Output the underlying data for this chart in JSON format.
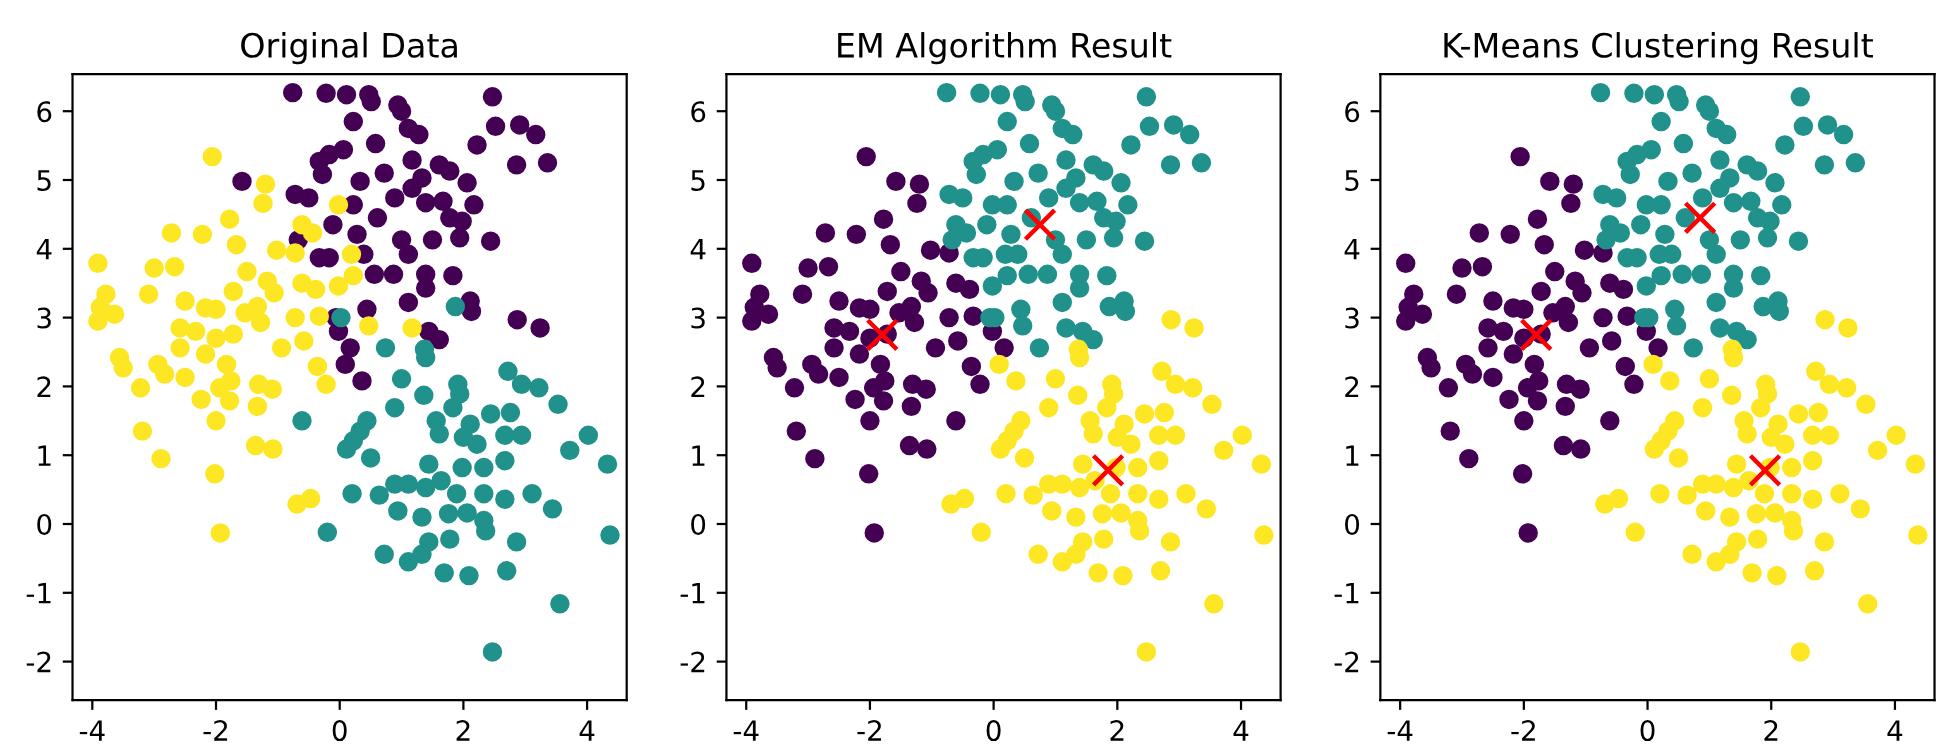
{
  "chart_data": [
    {
      "type": "scatter",
      "title": "Original Data",
      "marker": "circle",
      "xlim": [
        -4.32,
        4.64
      ],
      "ylim": [
        -2.56,
        6.54
      ],
      "xticks": [
        -4,
        -2,
        0,
        2,
        4
      ],
      "yticks": [
        -2,
        -1,
        0,
        1,
        2,
        3,
        4,
        5,
        6
      ],
      "series": [
        {
          "color": "#440154",
          "x": [
            -0.76,
            -0.22,
            0.11,
            0.47,
            0.51,
            0.94,
            1.0,
            2.47,
            0.22,
            1.11,
            1.28,
            2.52,
            2.91,
            3.17,
            2.22,
            0.58,
            0.06,
            -0.17,
            -0.33,
            1.17,
            1.61,
            1.78,
            2.86,
            3.36,
            -1.58,
            -0.28,
            0.33,
            0.72,
            1.33,
            2.06,
            -0.72,
            -0.5,
            0.89,
            1.17,
            1.39,
            1.67,
            2.17,
            0.22,
            1.78,
            1.98,
            -0.11,
            0.61,
            -0.67,
            0.28,
            1.0,
            1.5,
            1.94,
            2.44,
            0.39,
            -0.33,
            -0.17,
            1.11,
            0.56,
            0.87,
            1.39,
            1.83,
            1.39,
            1.11,
            2.11,
            2.13,
            0.44,
            -0.06,
            -0.02,
            0.17,
            0.09,
            0.36,
            1.44,
            1.61,
            2.87,
            3.24
          ],
          "values": [
            6.27,
            6.26,
            6.24,
            6.24,
            6.14,
            6.09,
            6.0,
            6.21,
            5.85,
            5.75,
            5.66,
            5.78,
            5.8,
            5.66,
            5.51,
            5.53,
            5.44,
            5.37,
            5.27,
            5.29,
            5.22,
            5.13,
            5.22,
            5.25,
            4.98,
            5.08,
            4.98,
            5.1,
            5.03,
            4.96,
            4.79,
            4.74,
            4.74,
            4.88,
            4.67,
            4.69,
            4.64,
            4.64,
            4.45,
            4.4,
            4.35,
            4.45,
            4.13,
            4.21,
            4.13,
            4.13,
            4.16,
            4.11,
            3.92,
            3.87,
            3.87,
            3.92,
            3.63,
            3.63,
            3.63,
            3.61,
            3.43,
            3.22,
            3.24,
            3.09,
            3.12,
            3.0,
            2.8,
            2.56,
            2.32,
            2.08,
            2.8,
            2.68,
            2.97,
            2.85
          ]
        },
        {
          "color": "#21918c",
          "x": [
            1.87,
            0.02,
            0.74,
            1.37,
            1.39,
            1.0,
            1.36,
            1.91,
            1.94,
            2.72,
            2.94,
            3.22,
            3.53,
            0.89,
            1.83,
            -0.61,
            0.44,
            0.33,
            0.22,
            0.11,
            0.5,
            1.56,
            1.61,
            2.11,
            2.44,
            2.76,
            2.0,
            2.22,
            2.67,
            2.94,
            4.02,
            3.72,
            4.33,
            1.44,
            1.98,
            2.33,
            2.67,
            0.89,
            1.11,
            1.39,
            1.64,
            1.89,
            2.33,
            2.67,
            3.11,
            0.2,
            0.64,
            0.94,
            1.33,
            1.76,
            2.06,
            2.33,
            3.44,
            2.36,
            -0.2,
            1.78,
            1.44,
            1.33,
            2.86,
            4.37,
            0.72,
            1.11,
            1.69,
            2.09,
            2.7,
            3.56,
            2.47
          ],
          "values": [
            3.16,
            3.0,
            2.56,
            2.54,
            2.42,
            2.11,
            1.87,
            2.03,
            1.89,
            2.22,
            2.03,
            1.98,
            1.74,
            1.69,
            1.69,
            1.5,
            1.5,
            1.35,
            1.21,
            1.09,
            0.96,
            1.5,
            1.31,
            1.45,
            1.6,
            1.62,
            1.26,
            1.16,
            1.29,
            1.29,
            1.29,
            1.07,
            0.87,
            0.87,
            0.82,
            0.82,
            0.92,
            0.58,
            0.58,
            0.53,
            0.63,
            0.44,
            0.44,
            0.36,
            0.44,
            0.44,
            0.42,
            0.19,
            0.1,
            0.15,
            0.16,
            0.05,
            0.22,
            -0.1,
            -0.12,
            -0.22,
            -0.26,
            -0.44,
            -0.26,
            -0.16,
            -0.44,
            -0.55,
            -0.71,
            -0.75,
            -0.68,
            -1.16,
            -1.86
          ]
        },
        {
          "color": "#fde725",
          "x": [
            -2.06,
            -1.2,
            -1.24,
            -1.78,
            -2.72,
            -2.22,
            -1.67,
            -0.61,
            -0.44,
            -0.02,
            -1.02,
            -0.72,
            0.19,
            -3.91,
            -3.0,
            -2.67,
            -1.5,
            -1.17,
            -0.61,
            0.22,
            -0.02,
            -3.78,
            -3.09,
            -1.72,
            -1.06,
            -0.39,
            -3.87,
            -3.64,
            -2.5,
            -2.17,
            -2.0,
            -1.53,
            -1.33,
            -0.33,
            -3.91,
            -2.58,
            -2.33,
            -1.28,
            -0.72,
            0.47,
            1.17,
            -2.0,
            -1.72,
            -0.58,
            -2.58,
            -2.17,
            -0.94,
            -3.56,
            -3.5,
            -2.94,
            -2.83,
            -1.83,
            -0.36,
            -3.22,
            -2.5,
            -1.76,
            -1.31,
            -1.09,
            -0.22,
            -1.94,
            -2.24,
            -1.78,
            -1.33,
            -2.0,
            -3.19,
            -1.36,
            -1.08,
            -2.89,
            -2.02,
            -0.69,
            -0.47,
            -1.93
          ],
          "values": [
            5.34,
            4.94,
            4.66,
            4.43,
            4.23,
            4.21,
            4.06,
            4.35,
            4.23,
            4.64,
            3.98,
            3.94,
            3.92,
            3.79,
            3.72,
            3.74,
            3.67,
            3.53,
            3.5,
            3.61,
            3.46,
            3.34,
            3.34,
            3.38,
            3.36,
            3.41,
            3.15,
            3.05,
            3.24,
            3.14,
            3.12,
            3.07,
            3.16,
            3.02,
            2.95,
            2.85,
            2.8,
            2.93,
            3.0,
            2.88,
            2.85,
            2.7,
            2.76,
            2.66,
            2.56,
            2.47,
            2.56,
            2.42,
            2.27,
            2.32,
            2.18,
            2.32,
            2.29,
            1.98,
            2.13,
            2.08,
            2.03,
            1.96,
            2.03,
            1.98,
            1.81,
            1.79,
            1.71,
            1.5,
            1.35,
            1.14,
            1.09,
            0.95,
            0.73,
            0.29,
            0.37,
            -0.13
          ]
        }
      ]
    },
    {
      "type": "scatter",
      "title": "EM Algorithm Result",
      "marker": "circle",
      "xlim": [
        -4.32,
        4.64
      ],
      "ylim": [
        -2.56,
        6.54
      ],
      "xticks": [
        -4,
        -2,
        0,
        2,
        4
      ],
      "yticks": [
        -2,
        -1,
        0,
        1,
        2,
        3,
        4,
        5,
        6
      ],
      "series": [
        {
          "color": "#440154",
          "x": [
            -2.06,
            -1.2,
            -1.24,
            -1.78,
            -2.72,
            -2.22,
            -1.67,
            -1.02,
            -0.72,
            -3.91,
            -3.0,
            -2.67,
            -1.5,
            -1.17,
            -0.61,
            -3.78,
            -3.09,
            -1.72,
            -1.06,
            -0.39,
            -3.87,
            -3.64,
            -2.5,
            -2.17,
            -2.0,
            -1.53,
            -1.33,
            -0.33,
            -3.91,
            -2.58,
            -2.33,
            -1.28,
            -0.72,
            -2.0,
            -1.72,
            -0.58,
            -2.58,
            -2.17,
            -0.94,
            -3.56,
            -3.5,
            -2.94,
            -2.83,
            -1.83,
            -0.36,
            -3.22,
            -2.5,
            -1.76,
            -1.31,
            -1.09,
            -0.22,
            -1.94,
            -2.24,
            -1.78,
            -1.33,
            -2.0,
            -3.19,
            -1.36,
            -1.08,
            -2.89,
            -2.02,
            -1.93,
            -1.58,
            -0.02,
            0.17,
            -0.61
          ],
          "values": [
            5.34,
            4.94,
            4.66,
            4.43,
            4.23,
            4.21,
            4.06,
            3.98,
            3.94,
            3.79,
            3.72,
            3.74,
            3.67,
            3.53,
            3.5,
            3.34,
            3.34,
            3.38,
            3.36,
            3.41,
            3.15,
            3.05,
            3.24,
            3.14,
            3.12,
            3.07,
            3.16,
            3.02,
            2.95,
            2.85,
            2.8,
            2.93,
            3.0,
            2.7,
            2.76,
            2.66,
            2.56,
            2.47,
            2.56,
            2.42,
            2.27,
            2.32,
            2.18,
            2.32,
            2.29,
            1.98,
            2.13,
            2.08,
            2.03,
            1.96,
            2.03,
            1.98,
            1.81,
            1.79,
            1.71,
            1.5,
            1.35,
            1.14,
            1.09,
            0.95,
            0.73,
            -0.13,
            4.98,
            2.8,
            2.56,
            1.5
          ]
        },
        {
          "color": "#21918c",
          "x": [
            -0.76,
            -0.22,
            0.11,
            0.47,
            0.51,
            0.94,
            1.0,
            2.47,
            0.22,
            1.11,
            1.28,
            2.52,
            2.91,
            3.17,
            2.22,
            0.58,
            0.06,
            -0.17,
            -0.33,
            1.17,
            1.61,
            1.78,
            2.86,
            3.36,
            -0.28,
            0.33,
            0.72,
            1.33,
            2.06,
            -0.72,
            -0.5,
            0.89,
            1.17,
            1.39,
            1.67,
            2.17,
            0.22,
            1.78,
            1.98,
            -0.11,
            0.61,
            -0.67,
            0.28,
            1.0,
            1.5,
            1.94,
            2.44,
            0.39,
            -0.33,
            -0.17,
            1.11,
            0.56,
            0.87,
            1.39,
            1.83,
            1.39,
            1.11,
            2.11,
            2.13,
            0.44,
            -0.06,
            1.44,
            1.61,
            1.87,
            0.02,
            0.74,
            -0.02,
            0.19,
            0.22,
            -0.02,
            -0.44,
            -0.61,
            0.47,
            1.17
          ],
          "values": [
            6.27,
            6.26,
            6.24,
            6.24,
            6.14,
            6.09,
            6.0,
            6.21,
            5.85,
            5.75,
            5.66,
            5.78,
            5.8,
            5.66,
            5.51,
            5.53,
            5.44,
            5.37,
            5.27,
            5.29,
            5.22,
            5.13,
            5.22,
            5.25,
            5.08,
            4.98,
            5.1,
            5.03,
            4.96,
            4.79,
            4.74,
            4.74,
            4.88,
            4.67,
            4.69,
            4.64,
            4.64,
            4.45,
            4.4,
            4.35,
            4.45,
            4.13,
            4.21,
            4.13,
            4.13,
            4.16,
            4.11,
            3.92,
            3.87,
            3.87,
            3.92,
            3.63,
            3.63,
            3.63,
            3.61,
            3.43,
            3.22,
            3.24,
            3.09,
            3.12,
            3.0,
            2.8,
            2.68,
            3.16,
            3.0,
            2.56,
            4.64,
            3.92,
            3.61,
            3.46,
            4.23,
            4.35,
            2.88,
            2.85
          ]
        },
        {
          "color": "#fde725",
          "x": [
            1.37,
            1.39,
            1.0,
            1.36,
            1.91,
            1.94,
            2.72,
            2.94,
            3.22,
            3.53,
            0.89,
            1.83,
            0.44,
            0.33,
            0.22,
            0.11,
            0.5,
            1.56,
            1.61,
            2.11,
            2.44,
            2.76,
            2.0,
            2.22,
            2.67,
            2.94,
            4.02,
            3.72,
            4.33,
            1.44,
            1.98,
            2.33,
            2.67,
            0.89,
            1.11,
            1.39,
            1.64,
            1.89,
            2.33,
            2.67,
            3.11,
            0.2,
            0.64,
            0.94,
            1.33,
            1.76,
            2.06,
            2.33,
            3.44,
            2.36,
            -0.2,
            1.78,
            1.44,
            1.33,
            2.86,
            4.37,
            0.72,
            1.11,
            1.69,
            2.09,
            2.7,
            3.56,
            2.47,
            0.09,
            0.36,
            2.87,
            3.24,
            -0.69,
            -0.47
          ],
          "values": [
            2.54,
            2.42,
            2.11,
            1.87,
            2.03,
            1.89,
            2.22,
            2.03,
            1.98,
            1.74,
            1.69,
            1.69,
            1.5,
            1.35,
            1.21,
            1.09,
            0.96,
            1.5,
            1.31,
            1.45,
            1.6,
            1.62,
            1.26,
            1.16,
            1.29,
            1.29,
            1.29,
            1.07,
            0.87,
            0.87,
            0.82,
            0.82,
            0.92,
            0.58,
            0.58,
            0.53,
            0.63,
            0.44,
            0.44,
            0.36,
            0.44,
            0.44,
            0.42,
            0.19,
            0.1,
            0.15,
            0.16,
            0.05,
            0.22,
            -0.1,
            -0.12,
            -0.22,
            -0.26,
            -0.44,
            -0.26,
            -0.16,
            -0.44,
            -0.55,
            -0.71,
            -0.75,
            -0.68,
            -1.16,
            -1.86,
            2.32,
            2.08,
            2.97,
            2.85,
            0.29,
            0.37
          ]
        },
        {
          "color": "#ff0000",
          "marker": "cross",
          "x": [
            -1.8,
            0.75,
            1.85
          ],
          "values": [
            2.75,
            4.35,
            0.78
          ]
        }
      ]
    },
    {
      "type": "scatter",
      "title": "K-Means Clustering Result",
      "marker": "circle",
      "xlim": [
        -4.32,
        4.64
      ],
      "ylim": [
        -2.56,
        6.54
      ],
      "xticks": [
        -4,
        -2,
        0,
        2,
        4
      ],
      "yticks": [
        -2,
        -1,
        0,
        1,
        2,
        3,
        4,
        5,
        6
      ],
      "series": [
        {
          "color": "#440154",
          "x": [
            -2.06,
            -1.2,
            -1.24,
            -1.78,
            -2.72,
            -2.22,
            -1.67,
            -1.02,
            -0.72,
            -3.91,
            -3.0,
            -2.67,
            -1.5,
            -1.17,
            -0.61,
            -3.78,
            -3.09,
            -1.72,
            -1.06,
            -0.39,
            -3.87,
            -3.64,
            -2.5,
            -2.17,
            -2.0,
            -1.53,
            -1.33,
            -0.33,
            -3.91,
            -2.58,
            -2.33,
            -1.28,
            -0.72,
            -2.0,
            -1.72,
            -0.58,
            -2.58,
            -2.17,
            -0.94,
            -3.56,
            -3.5,
            -2.94,
            -2.83,
            -1.83,
            -0.36,
            -3.22,
            -2.5,
            -1.76,
            -1.31,
            -1.09,
            -0.22,
            -1.94,
            -2.24,
            -1.78,
            -1.33,
            -2.0,
            -3.19,
            -1.36,
            -1.08,
            -2.89,
            -2.02,
            -1.93,
            -1.58,
            -0.02,
            0.17,
            -0.61
          ],
          "values": [
            5.34,
            4.94,
            4.66,
            4.43,
            4.23,
            4.21,
            4.06,
            3.98,
            3.94,
            3.79,
            3.72,
            3.74,
            3.67,
            3.53,
            3.5,
            3.34,
            3.34,
            3.38,
            3.36,
            3.41,
            3.15,
            3.05,
            3.24,
            3.14,
            3.12,
            3.07,
            3.16,
            3.02,
            2.95,
            2.85,
            2.8,
            2.93,
            3.0,
            2.7,
            2.76,
            2.66,
            2.56,
            2.47,
            2.56,
            2.42,
            2.27,
            2.32,
            2.18,
            2.32,
            2.29,
            1.98,
            2.13,
            2.08,
            2.03,
            1.96,
            2.03,
            1.98,
            1.81,
            1.79,
            1.71,
            1.5,
            1.35,
            1.14,
            1.09,
            0.95,
            0.73,
            -0.13,
            4.98,
            2.8,
            2.56,
            1.5
          ]
        },
        {
          "color": "#21918c",
          "x": [
            -0.76,
            -0.22,
            0.11,
            0.47,
            0.51,
            0.94,
            1.0,
            2.47,
            0.22,
            1.11,
            1.28,
            2.52,
            2.91,
            3.17,
            2.22,
            0.58,
            0.06,
            -0.17,
            -0.33,
            1.17,
            1.61,
            1.78,
            2.86,
            3.36,
            -0.28,
            0.33,
            0.72,
            1.33,
            2.06,
            -0.72,
            -0.5,
            0.89,
            1.17,
            1.39,
            1.67,
            2.17,
            0.22,
            1.78,
            1.98,
            -0.11,
            0.61,
            -0.67,
            0.28,
            1.0,
            1.5,
            1.94,
            2.44,
            0.39,
            -0.33,
            -0.17,
            1.11,
            0.56,
            0.87,
            1.39,
            1.83,
            1.39,
            1.11,
            2.11,
            2.13,
            0.44,
            -0.06,
            1.44,
            1.61,
            1.87,
            0.02,
            0.74,
            -0.02,
            0.19,
            0.22,
            -0.02,
            -0.44,
            -0.61,
            0.47,
            1.17
          ],
          "values": [
            6.27,
            6.26,
            6.24,
            6.24,
            6.14,
            6.09,
            6.0,
            6.21,
            5.85,
            5.75,
            5.66,
            5.78,
            5.8,
            5.66,
            5.51,
            5.53,
            5.44,
            5.37,
            5.27,
            5.29,
            5.22,
            5.13,
            5.22,
            5.25,
            5.08,
            4.98,
            5.1,
            5.03,
            4.96,
            4.79,
            4.74,
            4.74,
            4.88,
            4.67,
            4.69,
            4.64,
            4.64,
            4.45,
            4.4,
            4.35,
            4.45,
            4.13,
            4.21,
            4.13,
            4.13,
            4.16,
            4.11,
            3.92,
            3.87,
            3.87,
            3.92,
            3.63,
            3.63,
            3.63,
            3.61,
            3.43,
            3.22,
            3.24,
            3.09,
            3.12,
            3.0,
            2.8,
            2.68,
            3.16,
            3.0,
            2.56,
            4.64,
            3.92,
            3.61,
            3.46,
            4.23,
            4.35,
            2.88,
            2.85
          ]
        },
        {
          "color": "#fde725",
          "x": [
            1.37,
            1.39,
            1.0,
            1.36,
            1.91,
            1.94,
            2.72,
            2.94,
            3.22,
            3.53,
            0.89,
            1.83,
            0.44,
            0.33,
            0.22,
            0.11,
            0.5,
            1.56,
            1.61,
            2.11,
            2.44,
            2.76,
            2.0,
            2.22,
            2.67,
            2.94,
            4.02,
            3.72,
            4.33,
            1.44,
            1.98,
            2.33,
            2.67,
            0.89,
            1.11,
            1.39,
            1.64,
            1.89,
            2.33,
            2.67,
            3.11,
            0.2,
            0.64,
            0.94,
            1.33,
            1.76,
            2.06,
            2.33,
            3.44,
            2.36,
            -0.2,
            1.78,
            1.44,
            1.33,
            2.86,
            4.37,
            0.72,
            1.11,
            1.69,
            2.09,
            2.7,
            3.56,
            2.47,
            0.09,
            0.36,
            2.87,
            3.24,
            -0.69,
            -0.47
          ],
          "values": [
            2.54,
            2.42,
            2.11,
            1.87,
            2.03,
            1.89,
            2.22,
            2.03,
            1.98,
            1.74,
            1.69,
            1.69,
            1.5,
            1.35,
            1.21,
            1.09,
            0.96,
            1.5,
            1.31,
            1.45,
            1.6,
            1.62,
            1.26,
            1.16,
            1.29,
            1.29,
            1.29,
            1.07,
            0.87,
            0.87,
            0.82,
            0.82,
            0.92,
            0.58,
            0.58,
            0.53,
            0.63,
            0.44,
            0.44,
            0.36,
            0.44,
            0.44,
            0.42,
            0.19,
            0.1,
            0.15,
            0.16,
            0.05,
            0.22,
            -0.1,
            -0.12,
            -0.22,
            -0.26,
            -0.44,
            -0.26,
            -0.16,
            -0.44,
            -0.55,
            -0.71,
            -0.75,
            -0.68,
            -1.16,
            -1.86,
            2.32,
            2.08,
            2.97,
            2.85,
            0.29,
            0.37
          ]
        },
        {
          "color": "#ff0000",
          "marker": "cross",
          "x": [
            -1.8,
            0.85,
            1.9
          ],
          "values": [
            2.75,
            4.45,
            0.78
          ]
        }
      ]
    }
  ]
}
